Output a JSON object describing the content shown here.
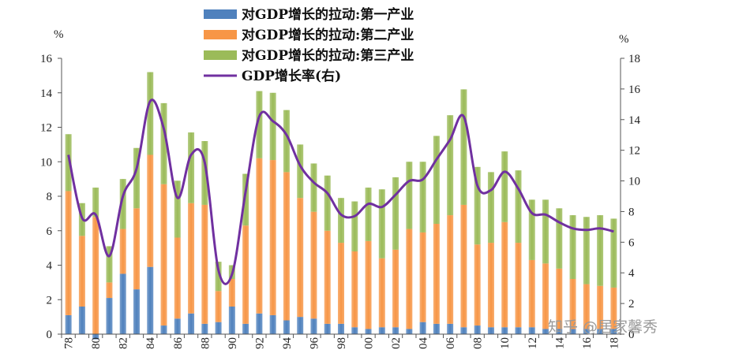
{
  "chart_data": {
    "type": "bar",
    "stacked": true,
    "x": [
      1978,
      1979,
      1980,
      1981,
      1982,
      1983,
      1984,
      1985,
      1986,
      1987,
      1988,
      1989,
      1990,
      1991,
      1992,
      1993,
      1994,
      1995,
      1996,
      1997,
      1998,
      1999,
      2000,
      2001,
      2002,
      2003,
      2004,
      2005,
      2006,
      2007,
      2008,
      2009,
      2010,
      2011,
      2012,
      2013,
      2014,
      2015,
      2016,
      2017,
      2018
    ],
    "x_tick_labels": [
      "78",
      "80",
      "82",
      "84",
      "86",
      "88",
      "90",
      "92",
      "94",
      "96",
      "98",
      "00",
      "02",
      "04",
      "06",
      "08",
      "10",
      "12",
      "14",
      "16",
      "18"
    ],
    "series": [
      {
        "name": "对GDP增长的拉动:第一产业",
        "axis": "left",
        "color": "#4f81bd",
        "values": [
          1.1,
          1.6,
          -0.3,
          2.1,
          3.5,
          2.6,
          3.9,
          0.5,
          0.9,
          1.2,
          0.6,
          0.7,
          1.6,
          0.6,
          1.2,
          1.1,
          0.8,
          1.0,
          0.9,
          0.6,
          0.6,
          0.4,
          0.3,
          0.4,
          0.4,
          0.3,
          0.7,
          0.6,
          0.6,
          0.4,
          0.5,
          0.4,
          0.4,
          0.4,
          0.4,
          0.3,
          0.3,
          0.3,
          0.3,
          0.3,
          0.3
        ]
      },
      {
        "name": "对GDP增长的拉动:第二产业",
        "axis": "left",
        "color": "#f79646",
        "values": [
          7.2,
          4.1,
          6.8,
          0.9,
          2.6,
          4.7,
          6.5,
          8.2,
          4.7,
          6.4,
          6.9,
          1.8,
          1.6,
          5.7,
          9.0,
          9.0,
          8.6,
          6.9,
          6.2,
          5.4,
          4.7,
          4.4,
          5.1,
          4.0,
          4.5,
          5.8,
          5.2,
          5.8,
          6.3,
          7.1,
          4.7,
          4.9,
          6.1,
          4.9,
          3.9,
          3.8,
          3.5,
          2.9,
          2.6,
          2.5,
          2.4
        ]
      },
      {
        "name": "对GDP增长的拉动:第三产业",
        "axis": "left",
        "color": "#9bbb59",
        "values": [
          3.3,
          1.9,
          1.7,
          2.1,
          2.9,
          3.5,
          4.8,
          4.7,
          3.3,
          4.1,
          3.7,
          1.7,
          0.8,
          3.0,
          3.9,
          3.9,
          3.6,
          3.1,
          2.8,
          3.2,
          2.6,
          2.9,
          3.1,
          4.0,
          4.2,
          3.9,
          4.1,
          5.1,
          5.8,
          6.7,
          4.5,
          4.1,
          4.1,
          4.2,
          3.5,
          3.7,
          3.5,
          3.7,
          3.9,
          4.1,
          4.0
        ]
      },
      {
        "name": "GDP增长率(右)",
        "axis": "right",
        "type": "line",
        "color": "#7030a0",
        "values": [
          11.7,
          7.6,
          7.8,
          5.1,
          9.0,
          10.8,
          15.2,
          13.4,
          8.9,
          11.7,
          11.2,
          4.2,
          3.9,
          9.3,
          14.2,
          13.9,
          13.0,
          11.0,
          9.9,
          9.2,
          7.8,
          7.7,
          8.5,
          8.3,
          9.1,
          10.0,
          10.1,
          11.4,
          12.7,
          14.2,
          9.7,
          9.4,
          10.6,
          9.5,
          7.9,
          7.8,
          7.3,
          6.9,
          6.8,
          6.9,
          6.7
        ]
      }
    ],
    "ylabel_left": "%",
    "ylabel_right": "%",
    "ylim_left": [
      0,
      16
    ],
    "ylim_right": [
      0,
      18
    ],
    "yticks_left": [
      0,
      2,
      4,
      6,
      8,
      10,
      12,
      14,
      16
    ],
    "yticks_right": [
      0,
      2,
      4,
      6,
      8,
      10,
      12,
      14,
      16,
      18
    ],
    "legend_position": "top-center",
    "grid": false
  },
  "watermark": "知乎 @居家馨秀"
}
